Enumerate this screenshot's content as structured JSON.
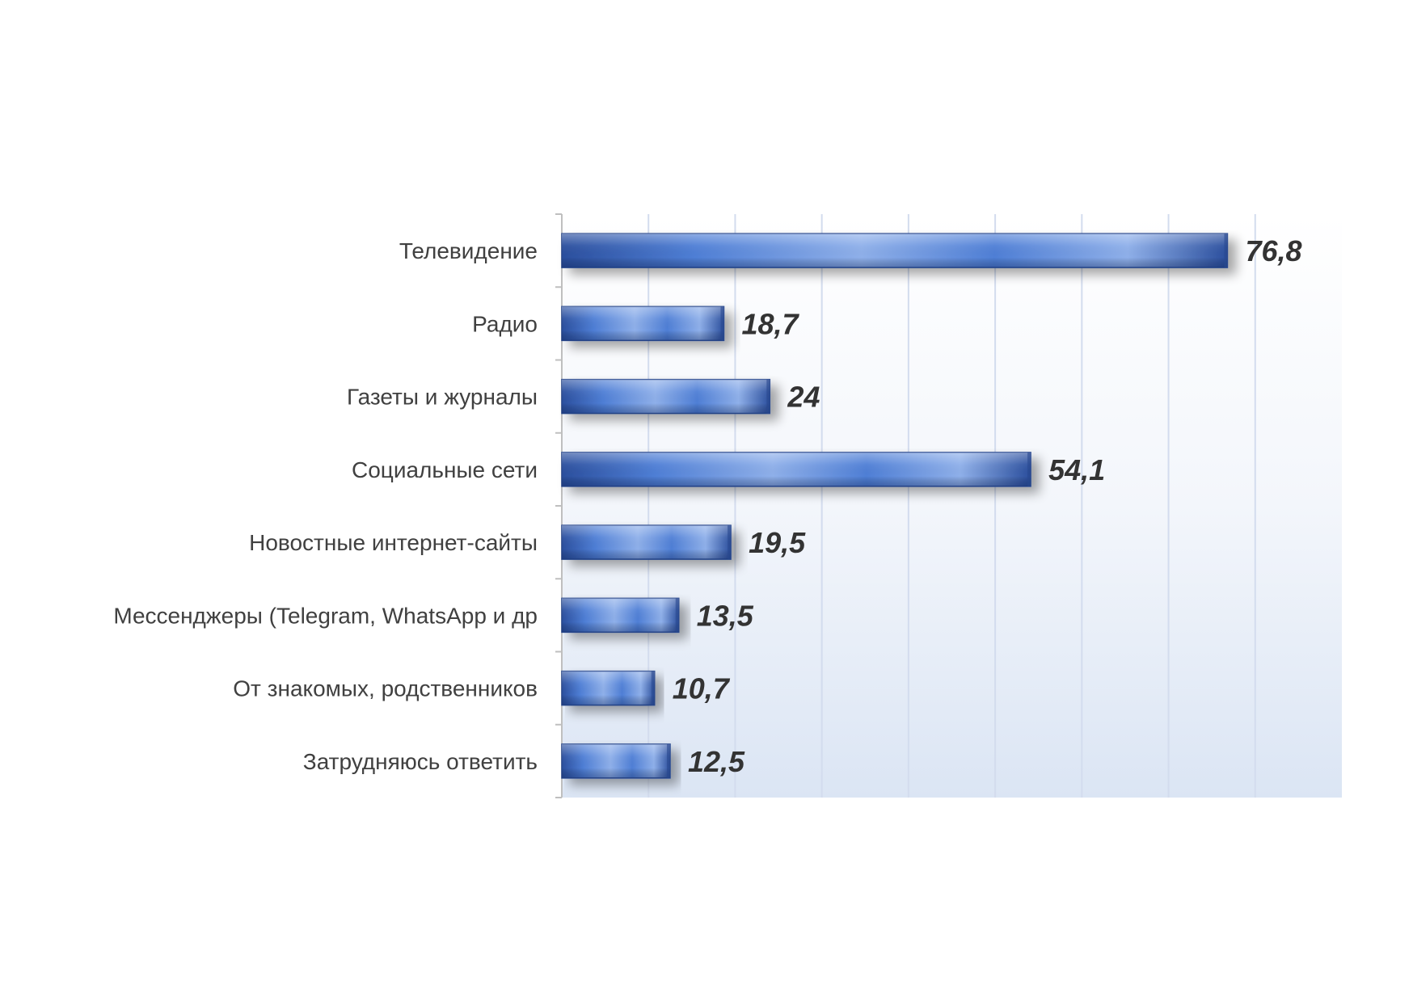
{
  "chart_data": {
    "type": "bar",
    "orientation": "horizontal",
    "categories": [
      "Телевидение",
      "Радио",
      "Газеты и журналы",
      "Социальные сети",
      "Новостные интернет-сайты",
      "Мессенджеры (Telegram,  WhatsApp и др",
      "От знакомых,  родственников",
      "Затрудняюсь ответить"
    ],
    "values": [
      76.8,
      18.7,
      24,
      54.1,
      19.5,
      13.5,
      10.7,
      12.5
    ],
    "value_labels": [
      "76,8",
      "18,7",
      "24",
      "54,1",
      "19,5",
      "13,5",
      "10,7",
      "12,5"
    ],
    "xlim": [
      0,
      90
    ],
    "grid": true,
    "colors": {
      "bar_dark": "#2b4f9e",
      "bar_light": "#8fb0ea",
      "bar_mid": "#4f7fd6",
      "plot_bg_top": "#ffffff",
      "plot_bg_bottom": "#dde7f5",
      "grid": "#d3dcee",
      "axis": "#bfbfbf"
    }
  }
}
